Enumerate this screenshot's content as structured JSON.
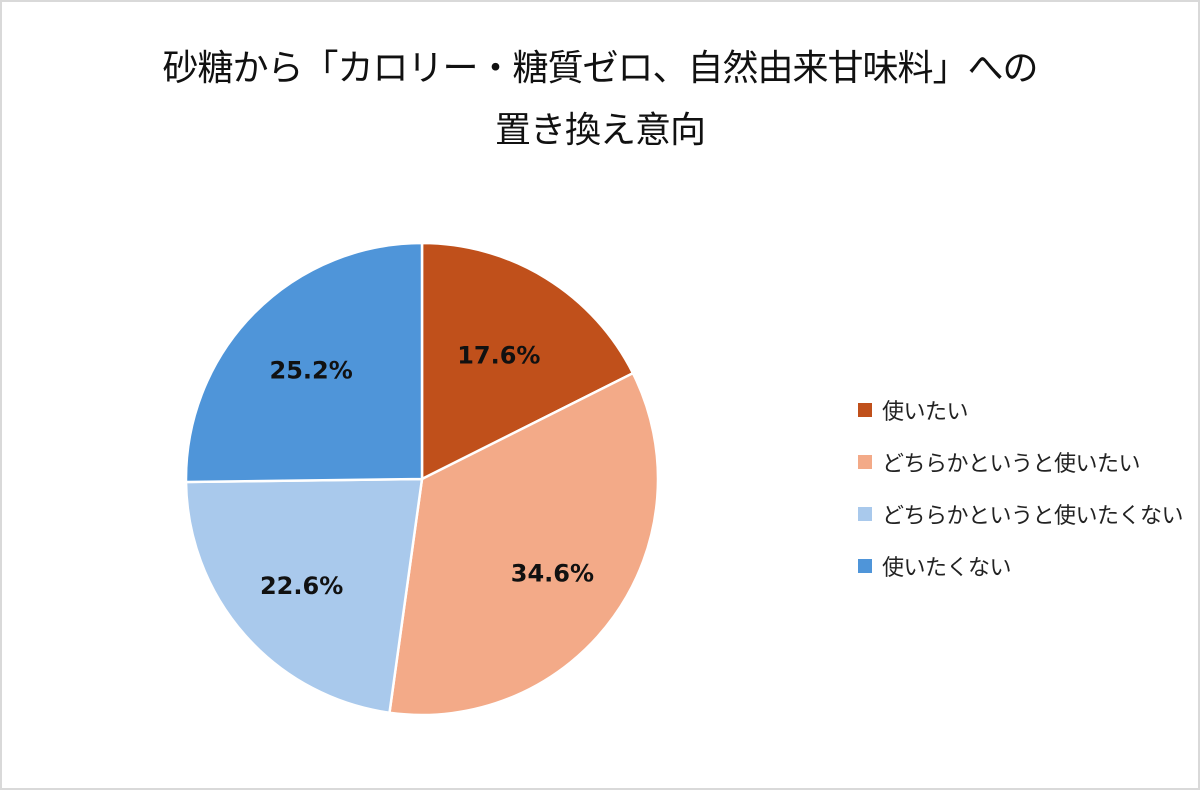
{
  "chart_data": {
    "type": "pie",
    "title": "砂糖から「カロリー・糖質ゼロ、自然由来甘味料」への置き換え意向",
    "title_lines": [
      "砂糖から「カロリー・糖質ゼロ、自然由来甘味料」への",
      "置き換え意向"
    ],
    "categories": [
      "使いたい",
      "どちらかというと使いたい",
      "どちらかというと使いたくない",
      "使いたくない"
    ],
    "values": [
      17.6,
      34.6,
      22.6,
      25.2
    ],
    "labels": [
      "17.6%",
      "34.6%",
      "22.6%",
      "25.2%"
    ],
    "colors": [
      "#c0501b",
      "#f3aa88",
      "#a9c9ec",
      "#4f95d9"
    ],
    "start_angle": "12 o'clock, clockwise",
    "legend_position": "right",
    "unit": "%"
  }
}
